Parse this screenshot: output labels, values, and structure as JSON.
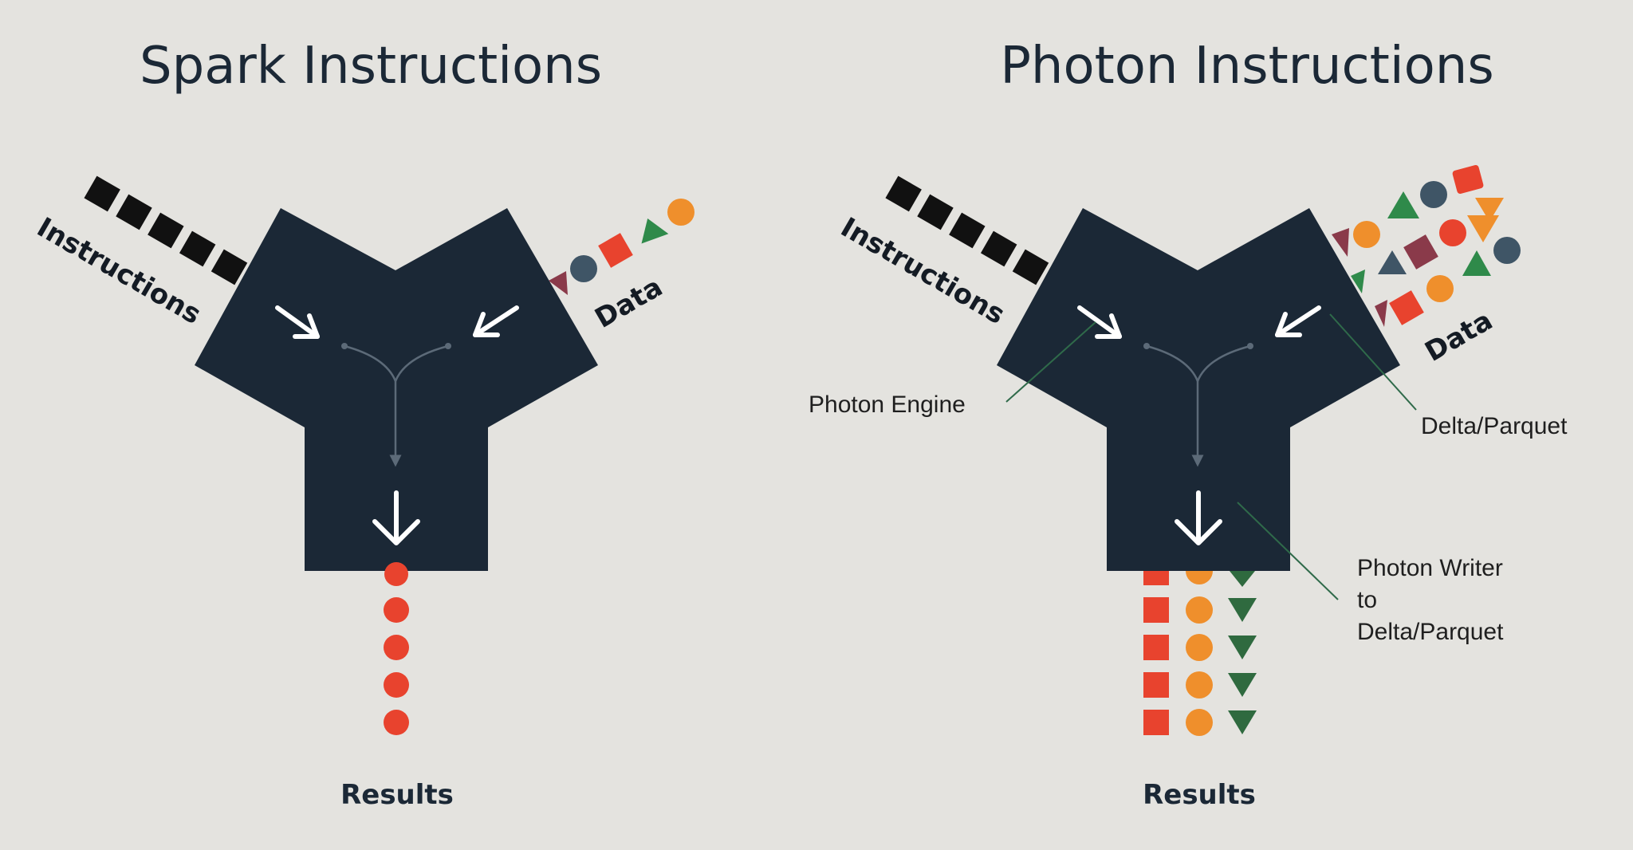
{
  "left_panel": {
    "title": "Spark Instructions",
    "instructions_label": "Instructions",
    "data_label": "Data",
    "results_label": "Results"
  },
  "right_panel": {
    "title": "Photon Instructions",
    "instructions_label": "Instructions",
    "data_label": "Data",
    "results_label": "Results",
    "callouts": {
      "engine": "Photon Engine",
      "format": "Delta/Parquet",
      "writer_line1": "Photon Writer",
      "writer_line2": "to",
      "writer_line3": "Delta/Parquet"
    }
  },
  "colors": {
    "background": "#e4e3df",
    "engine_body": "#1b2836",
    "instruction_block": "#111111",
    "red": "#e8432e",
    "orange": "#ef8f2c",
    "green": "#2f8a4a",
    "slate": "#3f5566",
    "maroon": "#8a3a4a",
    "callout_line": "#2f6a4a"
  }
}
